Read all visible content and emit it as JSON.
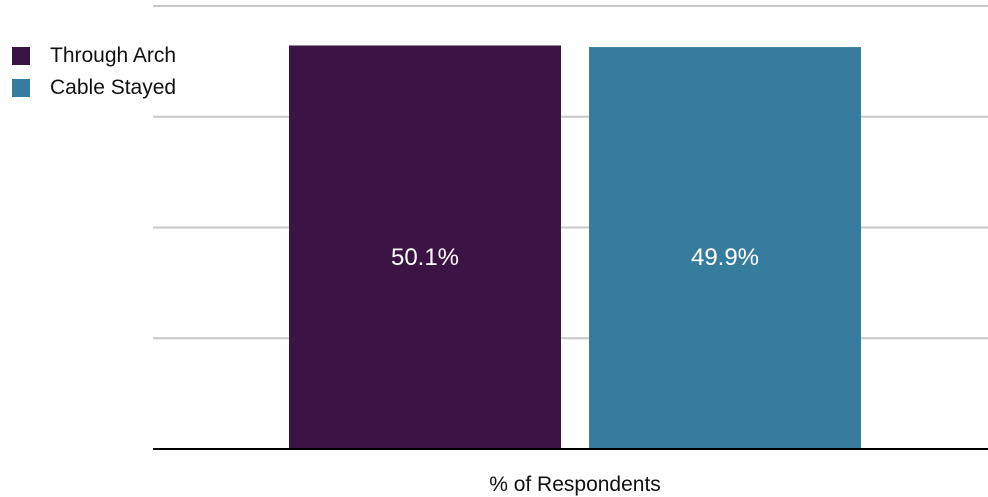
{
  "chart_data": {
    "type": "bar",
    "title": "",
    "xlabel": "% of Respondents",
    "ylabel": "",
    "categories": [
      "% of Respondents"
    ],
    "series": [
      {
        "name": "Through Arch",
        "values": [
          50.1
        ],
        "label": "50.1%",
        "color": "#3b1445"
      },
      {
        "name": "Cable Stayed",
        "values": [
          49.9
        ],
        "label": "49.9%",
        "color": "#367c9e"
      }
    ],
    "ylim": [
      0,
      55
    ],
    "grid": true,
    "legend_position": "top-left"
  }
}
